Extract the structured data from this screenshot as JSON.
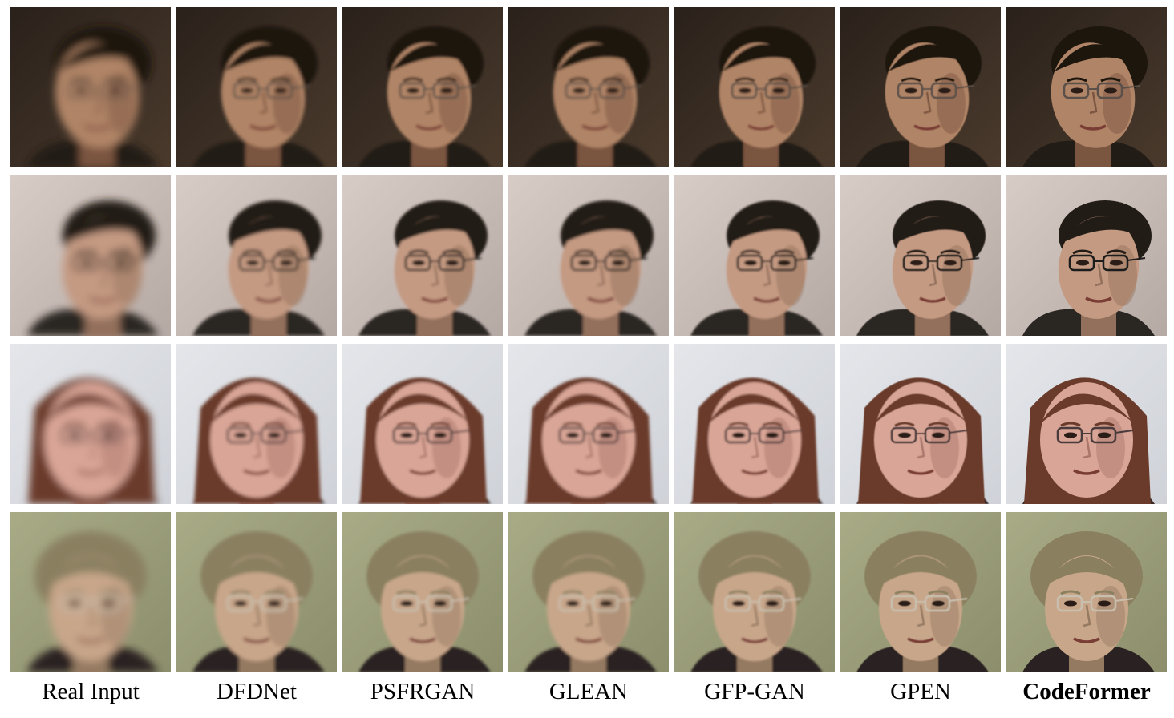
{
  "columns": [
    {
      "label": "Real Input",
      "bold": false,
      "blur": 5.0
    },
    {
      "label": "DFDNet",
      "bold": false,
      "blur": 2.2
    },
    {
      "label": "PSFRGAN",
      "bold": false,
      "blur": 1.6
    },
    {
      "label": "GLEAN",
      "bold": false,
      "blur": 1.8
    },
    {
      "label": "GFP-GAN",
      "bold": false,
      "blur": 1.2
    },
    {
      "label": "GPEN",
      "bold": false,
      "blur": 0.6
    },
    {
      "label": "CodeFormer",
      "bold": true,
      "blur": 0.2
    }
  ],
  "rows": [
    {
      "subject": "man-with-glasses-dark-background",
      "bg": "#2a211b",
      "bg2": "#4a3a2c",
      "hair": "#1b1410",
      "skin": "#b08466",
      "skin_shadow": "#7a553f",
      "shirt": "#241c18",
      "glasses": true,
      "glasses_color": "#5a5048",
      "hair_style": "short"
    },
    {
      "subject": "young-man-with-black-glasses",
      "bg": "#d8ccc6",
      "bg2": "#b5a9a4",
      "hair": "#221a16",
      "skin": "#c49a82",
      "skin_shadow": "#93705c",
      "shirt": "#2b2523",
      "glasses": true,
      "glasses_color": "#1a1a1a",
      "hair_style": "short"
    },
    {
      "subject": "smiling-woman-with-glasses",
      "bg": "#e4e6ea",
      "bg2": "#cfd2d8",
      "hair": "#6a3a2a",
      "skin": "#d9a596",
      "skin_shadow": "#a8766a",
      "shirt": "#3a2a26",
      "glasses": true,
      "glasses_color": "#4a3a3a",
      "hair_style": "long"
    },
    {
      "subject": "older-woman-with-glasses",
      "bg": "#a8ab86",
      "bg2": "#8c8e6c",
      "hair": "#8a8060",
      "skin": "#c8a68a",
      "skin_shadow": "#957a62",
      "shirt": "#2a2420",
      "glasses": true,
      "glasses_color": "#c8bfae",
      "hair_style": "curly"
    }
  ]
}
